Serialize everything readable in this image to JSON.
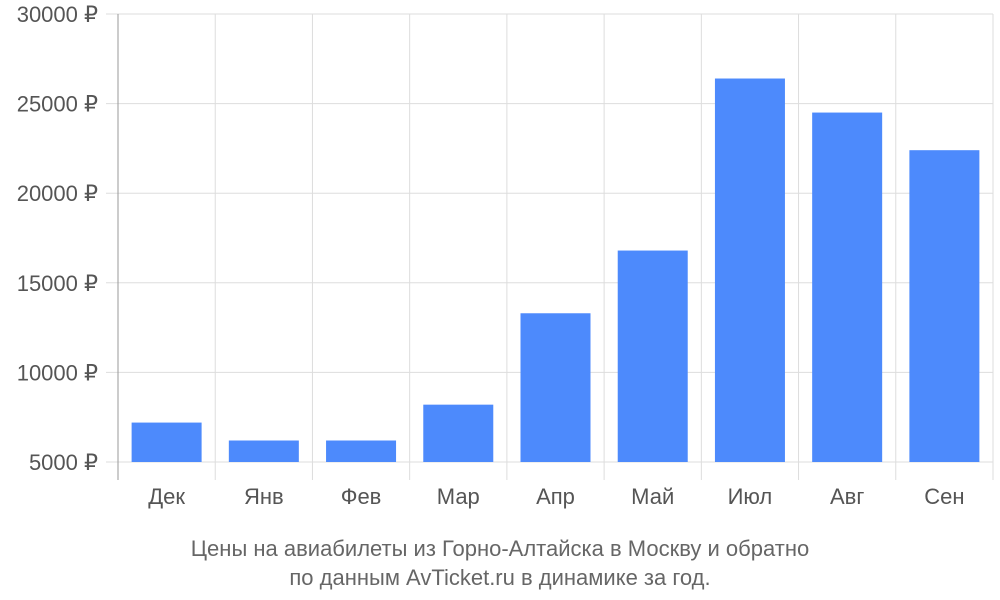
{
  "chart_data": {
    "type": "bar",
    "categories": [
      "Дек",
      "Янв",
      "Фев",
      "Мар",
      "Апр",
      "Май",
      "Июл",
      "Авг",
      "Сен"
    ],
    "values": [
      7200,
      6200,
      6200,
      8200,
      13300,
      16800,
      26400,
      24500,
      22400
    ],
    "ylim": [
      5000,
      30000
    ],
    "yticks": [
      5000,
      10000,
      15000,
      20000,
      25000,
      30000
    ],
    "ytick_labels": [
      "5000 ₽",
      "10000 ₽",
      "15000 ₽",
      "20000 ₽",
      "25000 ₽",
      "30000 ₽"
    ],
    "bar_color": "#4d8afc",
    "grid": true,
    "caption_line1": "Цены на авиабилеты из Горно-Алтайска в Москву и обратно",
    "caption_line2": "по данным AvTicket.ru в динамике за год."
  }
}
